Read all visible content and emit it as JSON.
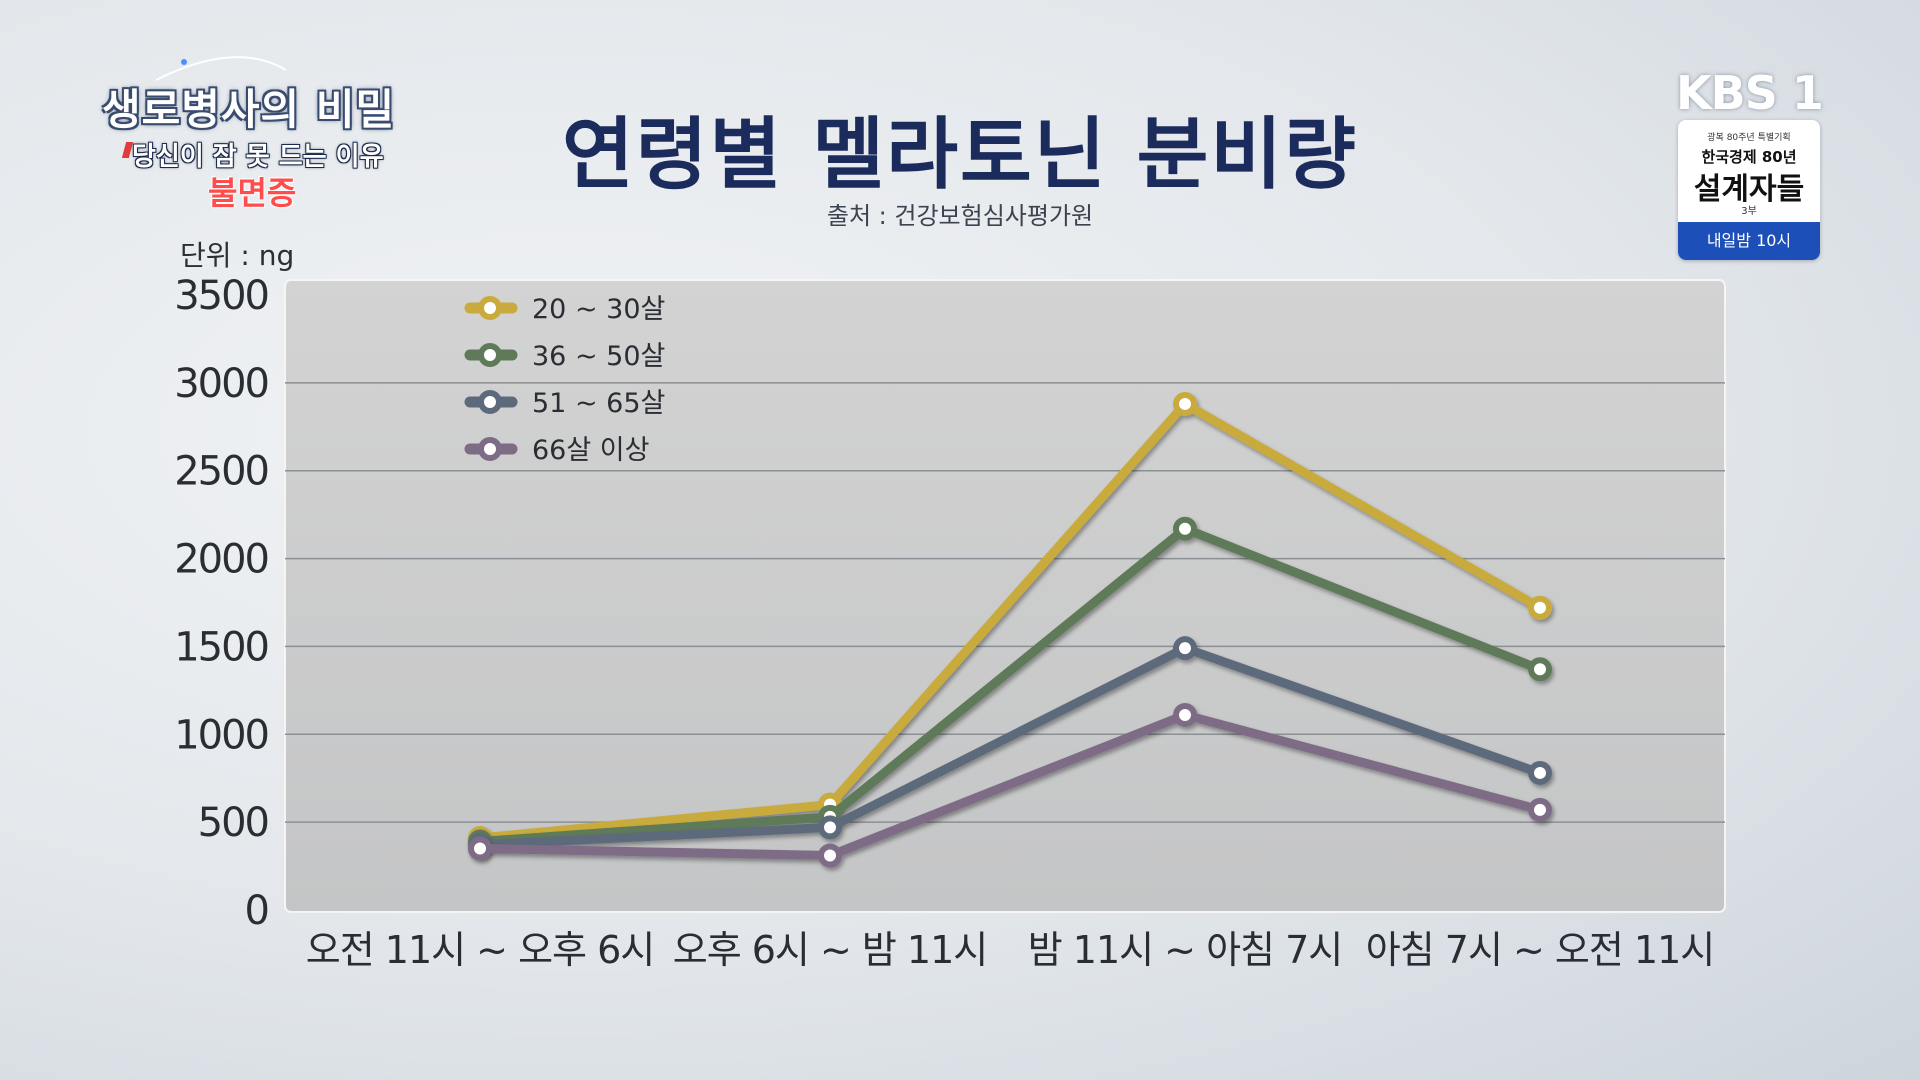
{
  "show": {
    "name": "생로병사의 비밀",
    "subtitle": "당신이 잠 못 드는 이유",
    "topic": "불면증"
  },
  "broadcaster": {
    "logo": "KBS 1",
    "promo_small": "광복 80주년 특별기획",
    "promo_mid": "한국경제 80년",
    "promo_big": "설계자들",
    "promo_episode": "3부",
    "promo_time": "내일밤 10시"
  },
  "chart_data": {
    "type": "line",
    "title": "연령별 멜라토닌 분비량",
    "source": "출처 : 건강보험심사평가원",
    "unit_label": "단위 : ng",
    "categories": [
      "오전 11시 ~ 오후 6시",
      "오후 6시 ~ 밤 11시",
      "밤 11시 ~ 아침 7시",
      "아침 7시 ~ 오전 11시"
    ],
    "ylim": [
      0,
      3500
    ],
    "yticks": [
      0,
      500,
      1000,
      1500,
      2000,
      2500,
      3000,
      3500
    ],
    "grid": true,
    "legend_position": "top-left",
    "series": [
      {
        "name": "20 ~ 30살",
        "color": "#c9aa3c",
        "values": [
          410,
          600,
          2880,
          1720
        ]
      },
      {
        "name": "36 ~ 50살",
        "color": "#5e7a58",
        "values": [
          390,
          530,
          2170,
          1370
        ]
      },
      {
        "name": "51 ~ 65살",
        "color": "#5d6a7c",
        "values": [
          370,
          470,
          1490,
          780
        ]
      },
      {
        "name": "66살 이상",
        "color": "#7e6c86",
        "values": [
          350,
          310,
          1110,
          570
        ]
      }
    ]
  }
}
